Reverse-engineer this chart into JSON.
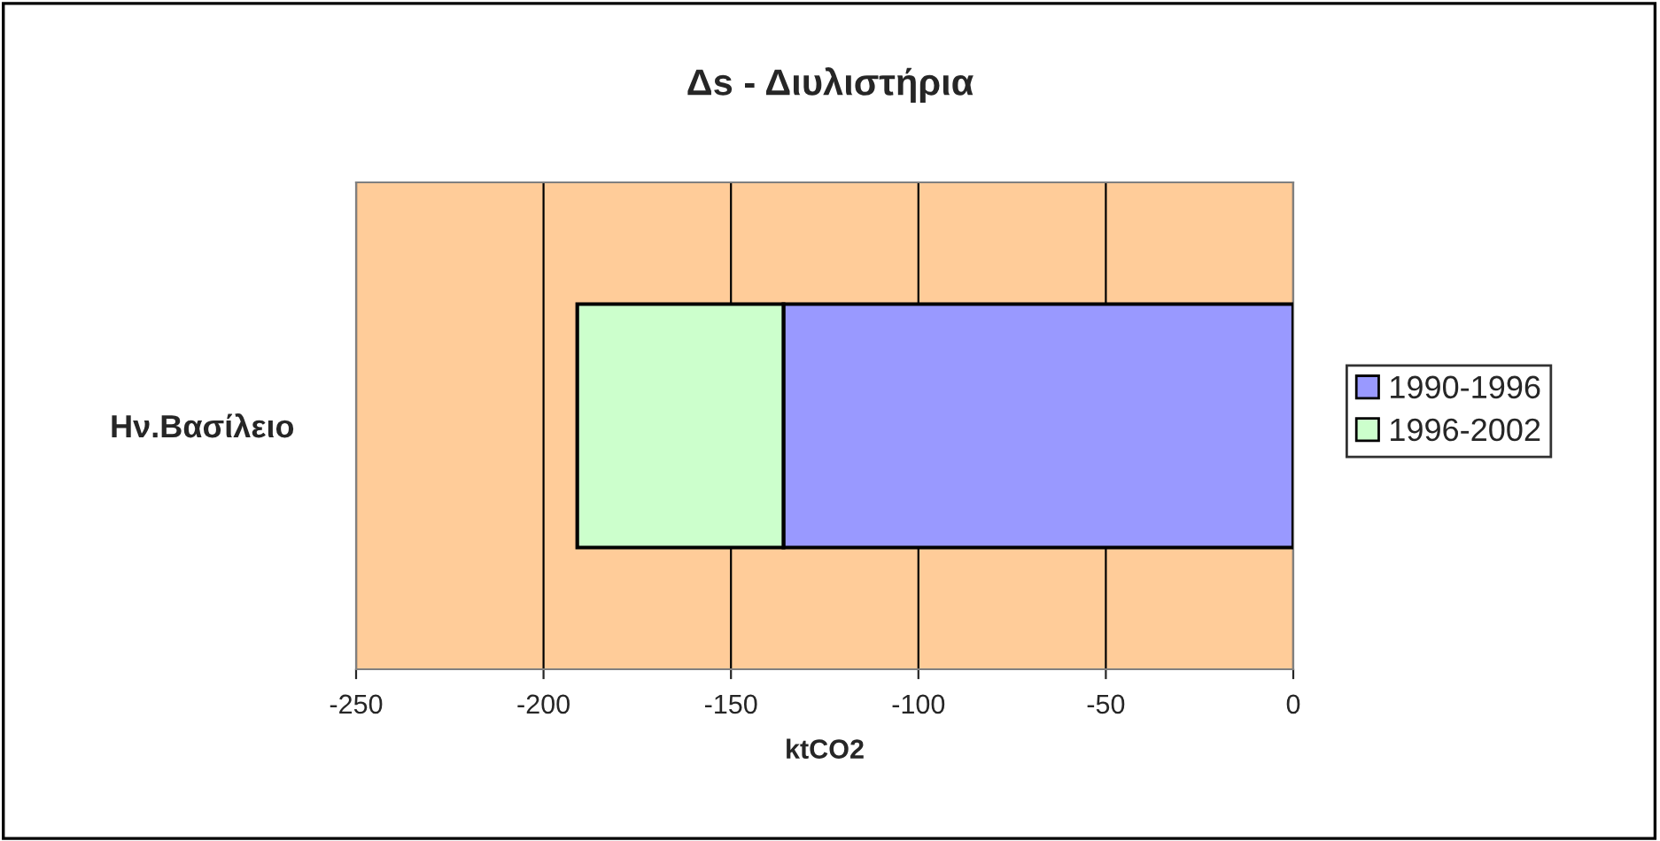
{
  "chart_data": {
    "type": "bar",
    "orientation": "horizontal",
    "stacked": true,
    "title": "Δs - Διυλιστήρια",
    "xlabel": "ktCO2",
    "categories": [
      "Ην.Βασίλειο"
    ],
    "series": [
      {
        "name": "1990-1996",
        "color": "#9999ff",
        "values": [
          -136
        ]
      },
      {
        "name": "1996-2002",
        "color": "#ccffcc",
        "values": [
          -55
        ]
      }
    ],
    "xlim": [
      -250,
      0
    ],
    "xticks": [
      -250,
      -200,
      -150,
      -100,
      -50,
      0
    ],
    "grid": "x",
    "legend": "right"
  }
}
